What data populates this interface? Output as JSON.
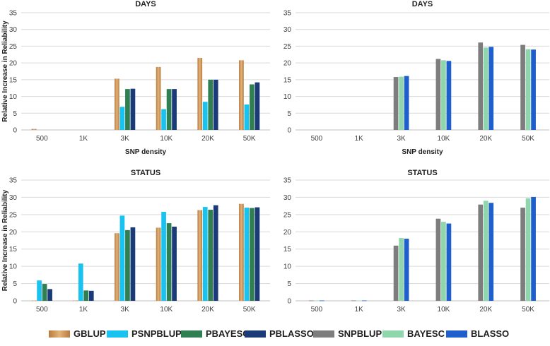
{
  "figure": {
    "ylabel": "Relative Increase in Reliability"
  },
  "series_styles": [
    {
      "name": "GBLUP",
      "color": "#c8914f",
      "gradient": true
    },
    {
      "name": "PSNPBLUP",
      "color": "#19c2ef",
      "gradient": false
    },
    {
      "name": "PBAYESC",
      "color": "#2f7f52",
      "gradient": false
    },
    {
      "name": "PBLASSO",
      "color": "#1a3a78",
      "gradient": false
    },
    {
      "name": "SNPBLUP",
      "color": "#7d7d7d",
      "gradient": false
    },
    {
      "name": "BAYESC",
      "color": "#8fd6ad",
      "gradient": false
    },
    {
      "name": "BLASSO",
      "color": "#1f5fcc",
      "gradient": false
    }
  ],
  "chart_data": [
    {
      "type": "bar",
      "title": "DAYS",
      "xlabel": "SNP density",
      "ylabel": "Relative Increase in Reliability",
      "ylim": [
        0,
        35
      ],
      "yticks": [
        0,
        5,
        10,
        15,
        20,
        25,
        30,
        35
      ],
      "grid": true,
      "categories": [
        "500",
        "1K",
        "3K",
        "10K",
        "20K",
        "50K"
      ],
      "series": [
        {
          "name": "GBLUP",
          "values": [
            0.3,
            0,
            15.3,
            18.8,
            21.5,
            20.8
          ]
        },
        {
          "name": "PSNPBLUP",
          "values": [
            0,
            0,
            6.9,
            6.2,
            8.4,
            7.6
          ]
        },
        {
          "name": "PBAYESC",
          "values": [
            0,
            0,
            12.2,
            12.2,
            15.0,
            13.6
          ]
        },
        {
          "name": "PBLASSO",
          "values": [
            0,
            0,
            12.3,
            12.2,
            15.0,
            14.2
          ]
        }
      ]
    },
    {
      "type": "bar",
      "title": "DAYS",
      "xlabel": "SNP density",
      "ylabel": "",
      "ylim": [
        0,
        35
      ],
      "yticks": [
        0,
        5,
        10,
        15,
        20,
        25,
        30,
        35
      ],
      "grid": true,
      "categories": [
        "500",
        "1K",
        "3K",
        "10K",
        "20K",
        "50K"
      ],
      "series": [
        {
          "name": "SNPBLUP",
          "values": [
            0,
            0,
            15.8,
            21.2,
            26.1,
            25.4
          ]
        },
        {
          "name": "BAYESC",
          "values": [
            0,
            0,
            15.9,
            20.8,
            24.6,
            24.1
          ]
        },
        {
          "name": "BLASSO",
          "values": [
            0,
            0,
            16.1,
            20.6,
            24.8,
            24.0
          ]
        }
      ]
    },
    {
      "type": "bar",
      "title": "STATUS",
      "xlabel": "",
      "ylabel": "Relative Increase in Reliability",
      "ylim": [
        0,
        35
      ],
      "yticks": [
        0,
        5,
        10,
        15,
        20,
        25,
        30,
        35
      ],
      "grid": true,
      "categories": [
        "500",
        "1K",
        "3K",
        "10K",
        "20K",
        "50K"
      ],
      "series": [
        {
          "name": "GBLUP",
          "values": [
            0.1,
            0.1,
            19.6,
            21.2,
            26.3,
            28.1
          ]
        },
        {
          "name": "PSNPBLUP",
          "values": [
            5.9,
            10.8,
            24.7,
            25.8,
            27.2,
            27.0
          ]
        },
        {
          "name": "PBAYESC",
          "values": [
            4.9,
            3.0,
            20.5,
            22.5,
            26.4,
            26.9
          ]
        },
        {
          "name": "PBLASSO",
          "values": [
            3.4,
            2.9,
            21.3,
            21.5,
            27.7,
            27.1
          ]
        }
      ]
    },
    {
      "type": "bar",
      "title": "STATUS",
      "xlabel": "",
      "ylabel": "",
      "ylim": [
        0,
        35
      ],
      "yticks": [
        0,
        5,
        10,
        15,
        20,
        25,
        30,
        35
      ],
      "grid": true,
      "categories": [
        "500",
        "1K",
        "3K",
        "10K",
        "20K",
        "50K"
      ],
      "series": [
        {
          "name": "SNPBLUP",
          "values": [
            0.1,
            0.1,
            16.0,
            23.8,
            27.9,
            27.0
          ]
        },
        {
          "name": "BAYESC",
          "values": [
            0.1,
            0.1,
            18.2,
            22.9,
            29.0,
            29.7
          ]
        },
        {
          "name": "BLASSO",
          "values": [
            0.1,
            0.1,
            18.0,
            22.4,
            28.4,
            30.1
          ]
        }
      ]
    }
  ],
  "legend": {
    "items": [
      "GBLUP",
      "PSNPBLUP",
      "PBAYESC",
      "PBLASSO",
      "SNPBLUP",
      "BAYESC",
      "BLASSO"
    ]
  }
}
